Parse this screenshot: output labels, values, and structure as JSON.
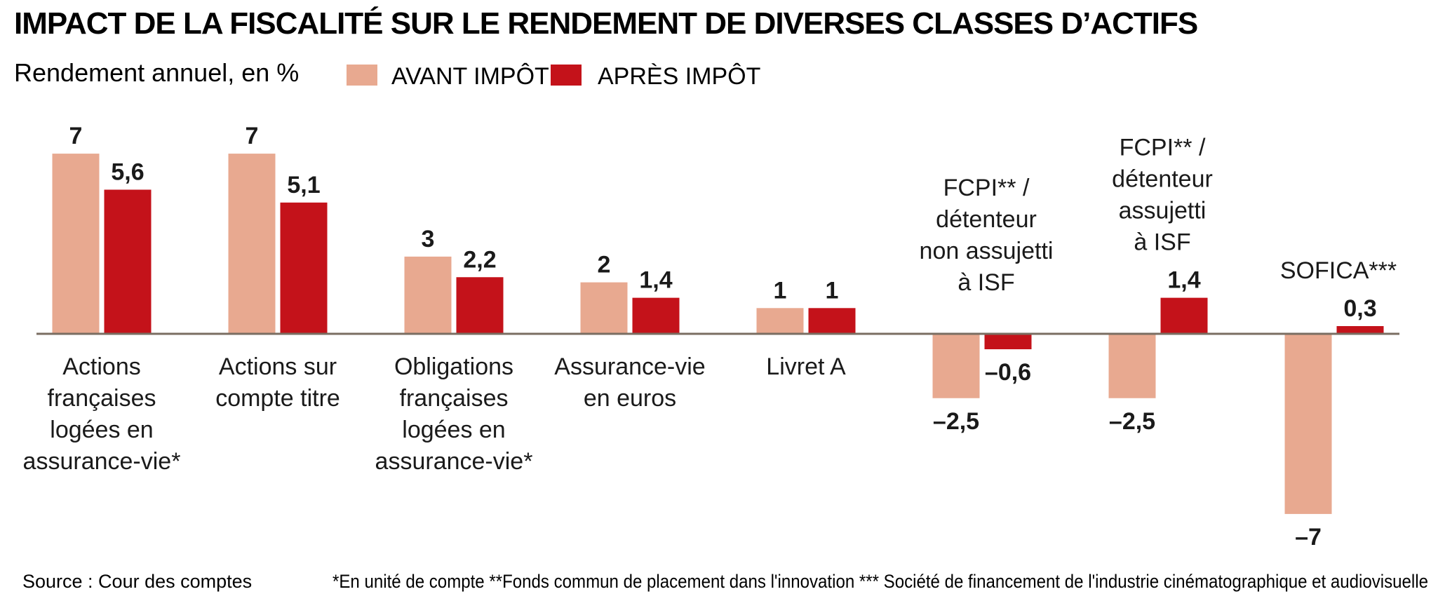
{
  "colors": {
    "before": "#e8a990",
    "after": "#c4121a",
    "baseline": "#7a6e62",
    "text": "#1a1a1a"
  },
  "chart_data": {
    "type": "bar",
    "title": "IMPACT DE LA FISCALITÉ SUR LE RENDEMENT DE DIVERSES CLASSES D’ACTIFS",
    "subtitle": "Rendement annuel, en %",
    "ylim": [
      -7.5,
      7.6
    ],
    "legend": [
      "AVANT IMPÔT",
      "APRÈS IMPÔT"
    ],
    "categories": [
      [
        "Actions",
        "françaises",
        "logées en",
        "assurance-vie*"
      ],
      [
        "Actions sur",
        "compte titre"
      ],
      [
        "Obligations",
        "françaises",
        "logées en",
        "assurance-vie*"
      ],
      [
        "Assurance-vie",
        "en euros"
      ],
      [
        "Livret A"
      ],
      [],
      [],
      []
    ],
    "annotations": [
      [],
      [],
      [],
      [],
      [],
      [
        "FCPI** /",
        "détenteur",
        "non assujetti",
        "à ISF"
      ],
      [
        "FCPI**  /",
        "détenteur",
        "assujetti",
        "à ISF"
      ],
      [
        "SOFICA***"
      ]
    ],
    "series": [
      {
        "name": "AVANT IMPÔT",
        "values": [
          7,
          7,
          3,
          2,
          1,
          -2.5,
          -2.5,
          -7
        ],
        "labels": [
          "7",
          "7",
          "3",
          "2",
          "1",
          "–2,5",
          "–2,5",
          "–7"
        ]
      },
      {
        "name": "APRÈS IMPÔT",
        "values": [
          5.6,
          5.1,
          2.2,
          1.4,
          1,
          -0.6,
          1.4,
          0.3
        ],
        "labels": [
          "5,6",
          "5,1",
          "2,2",
          "1,4",
          "1",
          "–0,6",
          "1,4",
          "0,3"
        ]
      }
    ]
  },
  "footer": {
    "source": "Source : Cour des comptes",
    "notes": "*En unité de compte **Fonds commun de placement dans l'innovation *** Société de financement de l'industrie cinématographique et audiovisuelle"
  }
}
